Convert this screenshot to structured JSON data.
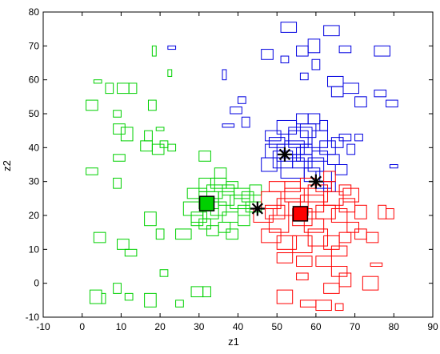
{
  "chart_data": {
    "type": "scatter",
    "title": "",
    "xlabel": "z1",
    "ylabel": "z2",
    "xlim": [
      -10,
      90
    ],
    "ylim": [
      -10,
      80
    ],
    "xticks": [
      -10,
      0,
      10,
      20,
      30,
      40,
      50,
      60,
      70,
      80,
      90
    ],
    "yticks": [
      -10,
      0,
      10,
      20,
      30,
      40,
      50,
      60,
      70,
      80
    ],
    "grid": false,
    "legend": "none",
    "marker": "rectangle",
    "series": [
      {
        "color": "#00d000",
        "boxes": [
          [
            1,
            51,
            3,
            3
          ],
          [
            3,
            59,
            2,
            1
          ],
          [
            6,
            56,
            2,
            3
          ],
          [
            9,
            56,
            3,
            3
          ],
          [
            12,
            56,
            2,
            3
          ],
          [
            18,
            67,
            1,
            3
          ],
          [
            22,
            61,
            1,
            2
          ],
          [
            17,
            51,
            2,
            3
          ],
          [
            8,
            49,
            2,
            2
          ],
          [
            8,
            44,
            3,
            3
          ],
          [
            10,
            42,
            3,
            4
          ],
          [
            16,
            42,
            2,
            3
          ],
          [
            19,
            45,
            2,
            1
          ],
          [
            1,
            32,
            3,
            2
          ],
          [
            8,
            36,
            3,
            2
          ],
          [
            15,
            39,
            3,
            3
          ],
          [
            18,
            38,
            3,
            3
          ],
          [
            22,
            39,
            2,
            2
          ],
          [
            20,
            40,
            2,
            2
          ],
          [
            8,
            28,
            2,
            3
          ],
          [
            3,
            12,
            3,
            3
          ],
          [
            9,
            10,
            3,
            3
          ],
          [
            11,
            8,
            3,
            2
          ],
          [
            16,
            17,
            3,
            4
          ],
          [
            19,
            13,
            2,
            3
          ],
          [
            20,
            2,
            2,
            2
          ],
          [
            2,
            -6,
            3,
            4
          ],
          [
            5,
            -6,
            1,
            3
          ],
          [
            8,
            -3,
            2,
            3
          ],
          [
            11,
            -5,
            2,
            2
          ],
          [
            16,
            -7,
            3,
            4
          ],
          [
            24,
            -7,
            2,
            2
          ],
          [
            28,
            -4,
            3,
            3
          ],
          [
            31,
            -4,
            2,
            3
          ],
          [
            24,
            13,
            4,
            3
          ],
          [
            26,
            20,
            5,
            4
          ],
          [
            28,
            18,
            4,
            3
          ],
          [
            30,
            22,
            5,
            5
          ],
          [
            32,
            25,
            4,
            4
          ],
          [
            33,
            28,
            4,
            3
          ],
          [
            34,
            31,
            3,
            3
          ],
          [
            30,
            27,
            4,
            4
          ],
          [
            36,
            18,
            4,
            3
          ],
          [
            38,
            22,
            5,
            4
          ],
          [
            39,
            25,
            4,
            3
          ],
          [
            40,
            20,
            3,
            3
          ],
          [
            41,
            24,
            3,
            3
          ],
          [
            42,
            21,
            4,
            3
          ],
          [
            35,
            15,
            3,
            3
          ],
          [
            37,
            13,
            3,
            3
          ],
          [
            28,
            17,
            3,
            3
          ],
          [
            33,
            20,
            4,
            4
          ],
          [
            35,
            23,
            4,
            4
          ],
          [
            31,
            19,
            4,
            5
          ],
          [
            27,
            25,
            5,
            3
          ],
          [
            30,
            16,
            3,
            3
          ],
          [
            32,
            14,
            3,
            3
          ],
          [
            36,
            26,
            3,
            3
          ],
          [
            40,
            17,
            3,
            3
          ],
          [
            43,
            26,
            3,
            3
          ],
          [
            30,
            36,
            3,
            3
          ],
          [
            37,
            28,
            3,
            2
          ]
        ]
      },
      {
        "color": "#0000e0",
        "boxes": [
          [
            51,
            74,
            4,
            3
          ],
          [
            62,
            73,
            4,
            3
          ],
          [
            55,
            67,
            3,
            3
          ],
          [
            58,
            68,
            3,
            4
          ],
          [
            66,
            68,
            3,
            2
          ],
          [
            75,
            67,
            4,
            3
          ],
          [
            51,
            65,
            2,
            2
          ],
          [
            56,
            60,
            2,
            2
          ],
          [
            59,
            63,
            2,
            3
          ],
          [
            63,
            58,
            4,
            3
          ],
          [
            36,
            60,
            1,
            3
          ],
          [
            46,
            66,
            3,
            3
          ],
          [
            22,
            69,
            2,
            1
          ],
          [
            64,
            55,
            3,
            3
          ],
          [
            67,
            56,
            4,
            3
          ],
          [
            70,
            52,
            3,
            3
          ],
          [
            75,
            55,
            3,
            2
          ],
          [
            78,
            52,
            3,
            2
          ],
          [
            38,
            50,
            3,
            2
          ],
          [
            40,
            53,
            2,
            2
          ],
          [
            36,
            46,
            3,
            1
          ],
          [
            41,
            46,
            2,
            3
          ],
          [
            47,
            42,
            4,
            3
          ],
          [
            50,
            44,
            5,
            4
          ],
          [
            53,
            41,
            6,
            5
          ],
          [
            56,
            43,
            4,
            4
          ],
          [
            59,
            40,
            4,
            5
          ],
          [
            61,
            38,
            4,
            4
          ],
          [
            63,
            35,
            3,
            3
          ],
          [
            65,
            32,
            3,
            3
          ],
          [
            47,
            37,
            5,
            4
          ],
          [
            49,
            34,
            5,
            5
          ],
          [
            51,
            31,
            6,
            6
          ],
          [
            54,
            34,
            5,
            4
          ],
          [
            57,
            30,
            4,
            4
          ],
          [
            60,
            28,
            4,
            5
          ],
          [
            62,
            27,
            3,
            3
          ],
          [
            48,
            40,
            4,
            3
          ],
          [
            52,
            38,
            5,
            4
          ],
          [
            55,
            36,
            4,
            4
          ],
          [
            58,
            33,
            4,
            4
          ],
          [
            50,
            36,
            6,
            5
          ],
          [
            53,
            40,
            5,
            5
          ],
          [
            46,
            33,
            4,
            4
          ],
          [
            56,
            38,
            3,
            3
          ],
          [
            59,
            36,
            4,
            3
          ],
          [
            64,
            40,
            3,
            3
          ],
          [
            66,
            42,
            3,
            2
          ],
          [
            68,
            38,
            2,
            3
          ],
          [
            70,
            42,
            2,
            2
          ],
          [
            79,
            34,
            2,
            1
          ],
          [
            55,
            47,
            3,
            3
          ],
          [
            58,
            47,
            3,
            3
          ],
          [
            61,
            45,
            2,
            3
          ]
        ]
      },
      {
        "color": "#ff0000",
        "boxes": [
          [
            44,
            18,
            5,
            4
          ],
          [
            46,
            22,
            5,
            5
          ],
          [
            48,
            15,
            5,
            5
          ],
          [
            50,
            20,
            6,
            5
          ],
          [
            52,
            24,
            5,
            4
          ],
          [
            54,
            17,
            5,
            5
          ],
          [
            56,
            21,
            6,
            5
          ],
          [
            58,
            24,
            5,
            5
          ],
          [
            60,
            19,
            5,
            4
          ],
          [
            62,
            23,
            5,
            4
          ],
          [
            64,
            18,
            4,
            4
          ],
          [
            66,
            21,
            4,
            4
          ],
          [
            46,
            12,
            5,
            4
          ],
          [
            50,
            10,
            5,
            4
          ],
          [
            54,
            9,
            5,
            5
          ],
          [
            58,
            11,
            5,
            5
          ],
          [
            62,
            10,
            4,
            4
          ],
          [
            64,
            8,
            4,
            3
          ],
          [
            66,
            12,
            3,
            3
          ],
          [
            68,
            15,
            3,
            3
          ],
          [
            67,
            24,
            4,
            4
          ],
          [
            66,
            26,
            3,
            3
          ],
          [
            48,
            27,
            4,
            3
          ],
          [
            52,
            27,
            4,
            3
          ],
          [
            56,
            28,
            4,
            3
          ],
          [
            60,
            27,
            4,
            3
          ],
          [
            62,
            30,
            3,
            3
          ],
          [
            50,
            6,
            4,
            3
          ],
          [
            55,
            5,
            4,
            3
          ],
          [
            60,
            5,
            4,
            3
          ],
          [
            64,
            2,
            4,
            3
          ],
          [
            70,
            19,
            3,
            4
          ],
          [
            70,
            13,
            3,
            3
          ],
          [
            76,
            19,
            2,
            4
          ],
          [
            73,
            12,
            3,
            3
          ],
          [
            74,
            5,
            3,
            1
          ],
          [
            72,
            -2,
            4,
            4
          ],
          [
            55,
            1,
            3,
            2
          ],
          [
            66,
            -1,
            3,
            4
          ],
          [
            62,
            -3,
            4,
            3
          ],
          [
            50,
            -6,
            4,
            4
          ],
          [
            56,
            -7,
            4,
            2
          ],
          [
            60,
            -8,
            4,
            3
          ],
          [
            65,
            -8,
            2,
            2
          ],
          [
            78,
            19,
            2,
            3
          ],
          [
            53,
            20,
            5,
            4
          ],
          [
            57,
            15,
            5,
            4
          ],
          [
            47,
            19,
            5,
            4
          ]
        ]
      }
    ],
    "centers": [
      {
        "color": "#00d000",
        "marker": "square",
        "x": 32,
        "y": 23.5
      },
      {
        "color": "#ff0000",
        "marker": "square",
        "x": 56,
        "y": 20.5
      },
      {
        "color": "#000000",
        "marker": "asterisk",
        "x": 45,
        "y": 22
      },
      {
        "color": "#000000",
        "marker": "asterisk",
        "x": 52,
        "y": 38
      },
      {
        "color": "#000000",
        "marker": "asterisk",
        "x": 60,
        "y": 30
      }
    ]
  }
}
